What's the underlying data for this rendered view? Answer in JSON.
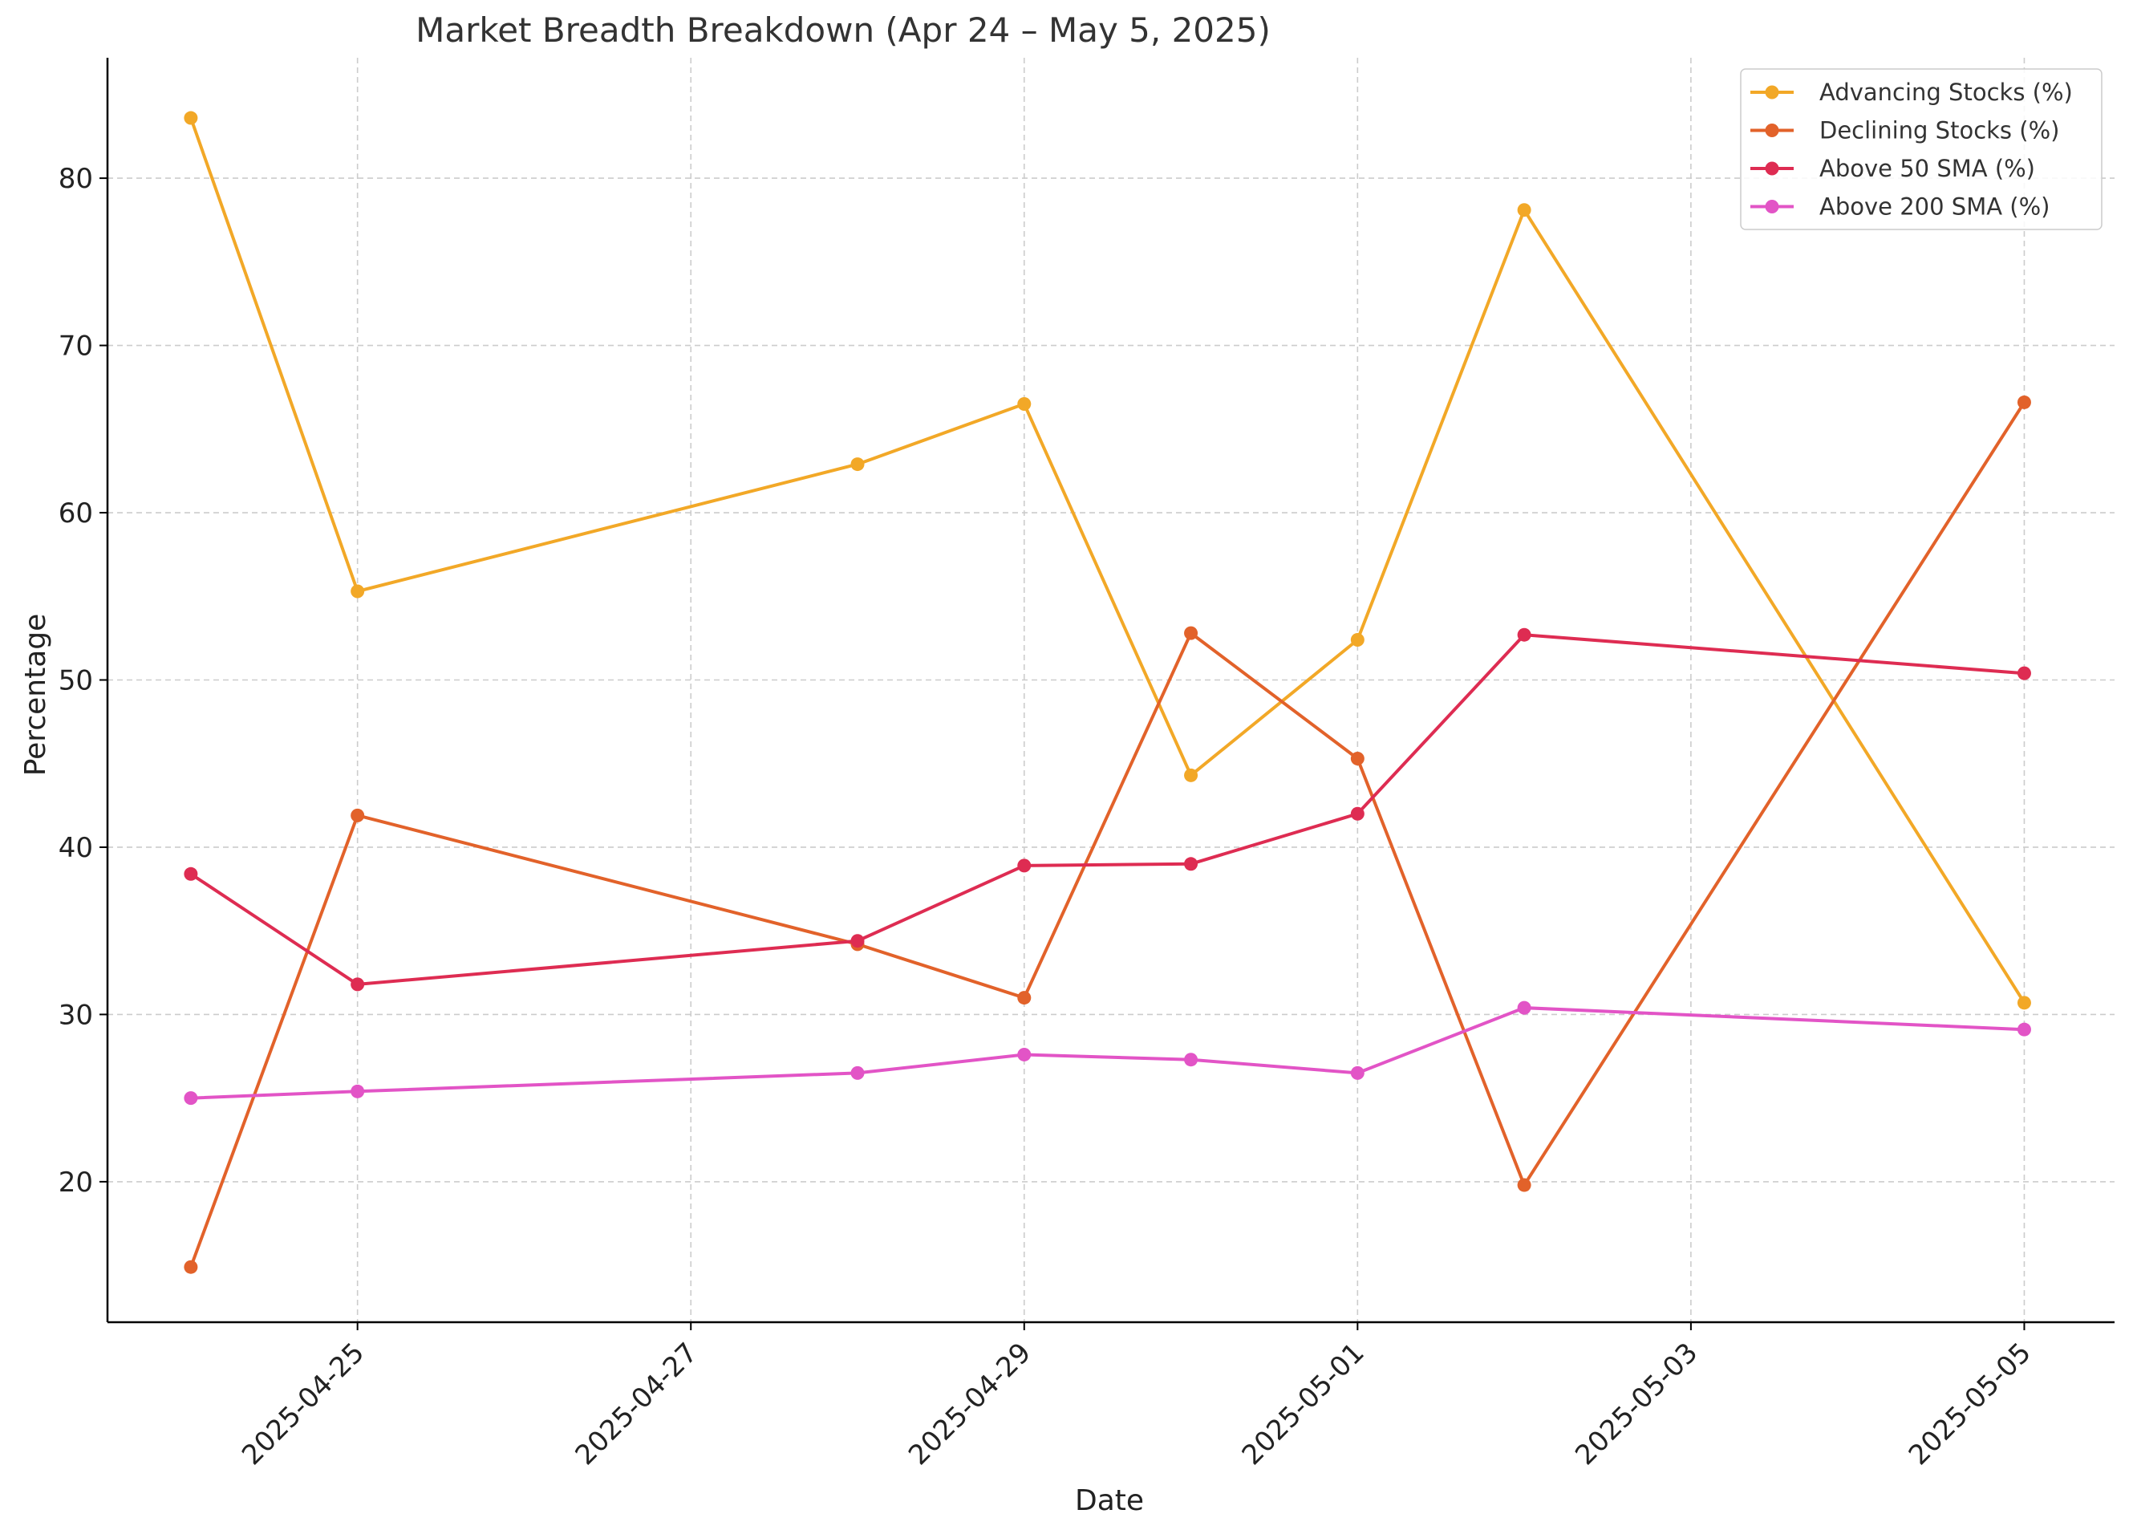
{
  "chart_data": {
    "type": "line",
    "title": "Market Breadth Breakdown (Apr 24 – May 5, 2025)",
    "xlabel": "Date",
    "ylabel": "Percentage",
    "x": [
      "2025-04-24",
      "2025-04-25",
      "2025-04-28",
      "2025-04-29",
      "2025-04-30",
      "2025-05-01",
      "2025-05-02",
      "2025-05-05"
    ],
    "xlim": [
      "2025-04-23T12:00",
      "2025-05-05T13:00"
    ],
    "ylim": [
      11.6,
      87.2
    ],
    "x_ticks": [
      "2025-04-25",
      "2025-04-27",
      "2025-04-29",
      "2025-05-01",
      "2025-05-03",
      "2025-05-05"
    ],
    "y_ticks": [
      20,
      30,
      40,
      50,
      60,
      70,
      80
    ],
    "grid": true,
    "legend_position": "top-right",
    "series": [
      {
        "name": "Advancing Stocks (%)",
        "color": "#F2A827",
        "values": [
          83.6,
          55.3,
          62.9,
          66.5,
          44.3,
          52.4,
          78.1,
          30.7
        ]
      },
      {
        "name": "Declining Stocks (%)",
        "color": "#E2622A",
        "values": [
          14.9,
          41.9,
          34.2,
          31.0,
          52.8,
          45.3,
          19.8,
          66.6
        ]
      },
      {
        "name": "Above 50 SMA (%)",
        "color": "#DE2C52",
        "values": [
          38.4,
          31.8,
          34.4,
          38.9,
          39.0,
          42.0,
          52.7,
          50.4
        ]
      },
      {
        "name": "Above 200 SMA (%)",
        "color": "#E254C6",
        "values": [
          25.0,
          25.4,
          26.5,
          27.6,
          27.3,
          26.5,
          30.4,
          29.1
        ]
      }
    ]
  }
}
